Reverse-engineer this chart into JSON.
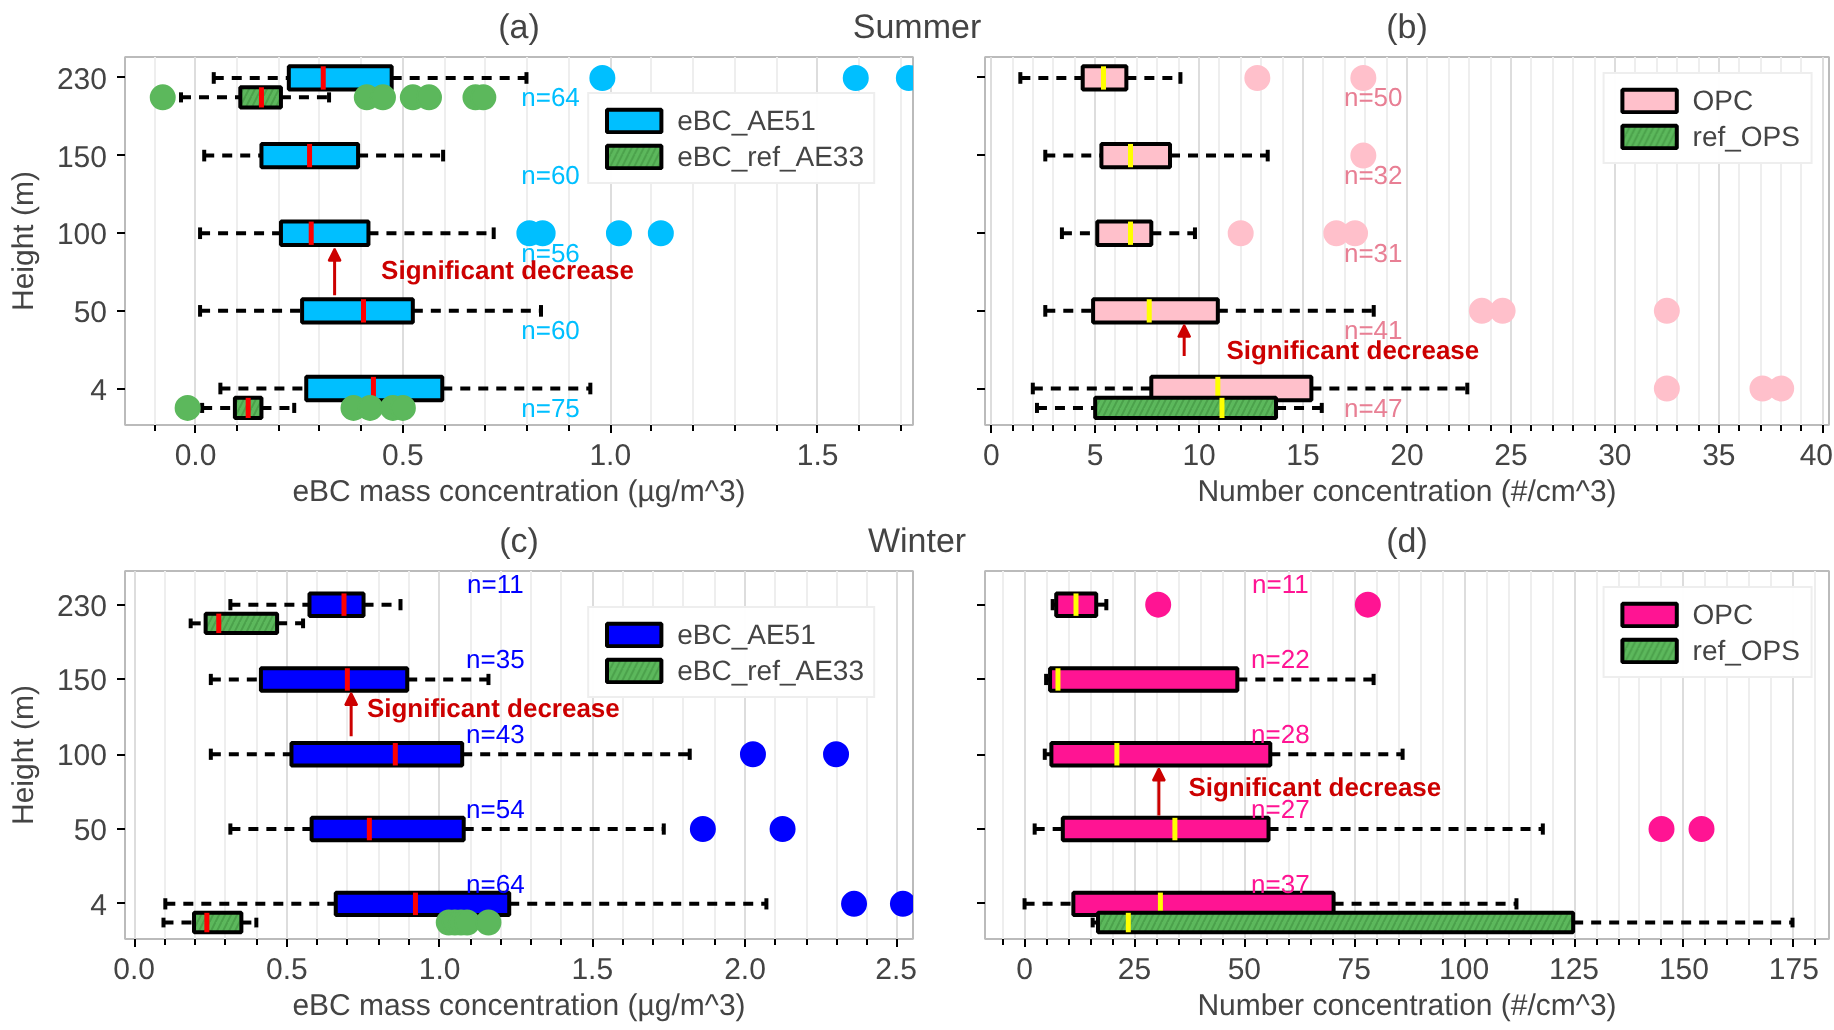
{
  "chart_data": [
    {
      "type": "box",
      "orientation": "horizontal",
      "title": "(a)",
      "subtitle": "Summer",
      "xlabel": "eBC mass concentration (µg/m^3)",
      "ylabel": "Height (m)",
      "categories": [
        "230",
        "150",
        "100",
        "50",
        "4"
      ],
      "xlim": [
        -0.17,
        1.73
      ],
      "xticks": [
        {
          "value": 0,
          "label": "0.0"
        },
        0.5,
        {
          "value": 1,
          "label": "1.0"
        },
        1.5
      ],
      "grid": "x",
      "legend": "top right",
      "series": [
        {
          "name": "eBC_AE51",
          "color": "#00bfff",
          "boxes": [
            {
              "low": 0.044,
              "q1": 0.225,
              "median": 0.308,
              "q3": 0.473,
              "high": 0.798,
              "outliers": [
                0.981,
                1.592,
                1.72
              ]
            },
            {
              "low": 0.021,
              "q1": 0.159,
              "median": 0.275,
              "q3": 0.392,
              "high": 0.597,
              "outliers": [
                1.087
              ]
            },
            {
              "low": 0.011,
              "q1": 0.206,
              "median": 0.279,
              "q3": 0.417,
              "high": 0.719,
              "outliers": [
                0.805,
                0.837,
                1.021,
                1.122
              ]
            },
            {
              "low": 0.011,
              "q1": 0.257,
              "median": 0.405,
              "q3": 0.524,
              "high": 0.833
            },
            {
              "low": 0.06,
              "q1": 0.267,
              "median": 0.429,
              "q3": 0.595,
              "high": 0.952
            }
          ]
        },
        {
          "name": "eBC_ref_AE33",
          "color": "#5cb85c",
          "boxes": [
            {
              "low": -0.035,
              "q1": 0.108,
              "median": 0.159,
              "q3": 0.206,
              "high": 0.322,
              "outliers": [
                -0.079,
                0.413,
                0.452,
                0.524,
                0.563,
                0.675,
                0.694
              ]
            },
            null,
            null,
            null,
            {
              "low": 0.016,
              "q1": 0.095,
              "median": 0.127,
              "q3": 0.159,
              "high": 0.238,
              "outliers": [
                -0.019,
                0.381,
                0.421,
                0.476,
                0.5
              ]
            }
          ]
        }
      ],
      "annotations": [
        "n=64",
        "n=60",
        "n=56",
        "n=60",
        "n=75",
        "Significant decrease"
      ]
    },
    {
      "type": "box",
      "orientation": "horizontal",
      "title": "(b)",
      "xlabel": "Number concentration (#/cm^3)",
      "categories": [
        "230",
        "150",
        "100",
        "50",
        "4"
      ],
      "xlim": [
        -0.3,
        40.3
      ],
      "xticks": [
        0,
        5,
        10,
        15,
        20,
        25,
        30,
        35,
        40
      ],
      "grid": "x",
      "legend": "top right",
      "tick_labels": "x",
      "series": [
        {
          "name": "OPC",
          "color": "#ffc0cb",
          "boxes": [
            {
              "low": 1.4,
              "q1": 4.4,
              "median": 5.4,
              "q3": 6.5,
              "high": 9.1,
              "outliers": [
                12.8,
                17.9
              ]
            },
            {
              "low": 2.6,
              "q1": 5.3,
              "median": 6.7,
              "q3": 8.6,
              "high": 13.3,
              "outliers": [
                17.9
              ]
            },
            {
              "low": 3.4,
              "q1": 5.1,
              "median": 6.7,
              "q3": 7.7,
              "high": 9.8,
              "outliers": [
                12.0,
                16.6,
                17.5
              ]
            },
            {
              "low": 2.6,
              "q1": 4.9,
              "median": 7.6,
              "q3": 10.9,
              "high": 18.4,
              "outliers": [
                23.6,
                24.6,
                32.5
              ]
            },
            {
              "low": 2.0,
              "q1": 7.7,
              "median": 10.9,
              "q3": 15.4,
              "high": 22.9,
              "outliers": [
                32.5,
                37.1,
                38.0
              ]
            }
          ]
        },
        {
          "name": "ref_OPS",
          "color": "#5cb85c",
          "boxes": [
            null,
            null,
            null,
            null,
            {
              "low": 2.2,
              "q1": 5.0,
              "median": 11.1,
              "q3": 13.7,
              "high": 15.9
            }
          ]
        }
      ],
      "annotations": [
        "n=50",
        "n=32",
        "n=31",
        "n=41",
        "n=47",
        "Significant decrease"
      ]
    },
    {
      "type": "box",
      "orientation": "horizontal",
      "title": "(c)",
      "subtitle": "Winter",
      "xlabel": "eBC mass concentration (µg/m^3)",
      "ylabel": "Height (m)",
      "categories": [
        "230",
        "150",
        "100",
        "50",
        "4"
      ],
      "xlim": [
        -0.03,
        2.55
      ],
      "xticks": [
        {
          "value": 0,
          "label": "0.0"
        },
        0.5,
        {
          "value": 1,
          "label": "1.0"
        },
        1.5,
        {
          "value": 2,
          "label": "2.0"
        },
        2.5
      ],
      "grid": "x",
      "legend": "top right",
      "series": [
        {
          "name": "eBC_AE51",
          "color": "#0000ff",
          "boxes": [
            {
              "low": 0.315,
              "q1": 0.574,
              "median": 0.687,
              "q3": 0.751,
              "high": 0.872
            },
            {
              "low": 0.251,
              "q1": 0.415,
              "median": 0.698,
              "q3": 0.894,
              "high": 1.16
            },
            {
              "low": 0.251,
              "q1": 0.515,
              "median": 0.855,
              "q3": 1.074,
              "high": 1.819,
              "outliers": [
                2.026,
                2.298
              ]
            },
            {
              "low": 0.315,
              "q1": 0.581,
              "median": 0.77,
              "q3": 1.079,
              "high": 1.734,
              "outliers": [
                1.862,
                2.123
              ]
            },
            {
              "low": 0.102,
              "q1": 0.66,
              "median": 0.921,
              "q3": 1.228,
              "high": 2.07,
              "outliers": [
                2.357,
                2.517
              ]
            }
          ]
        },
        {
          "name": "eBC_ref_AE33",
          "color": "#5cb85c",
          "boxes": [
            {
              "low": 0.185,
              "q1": 0.234,
              "median": 0.277,
              "q3": 0.468,
              "high": 0.553
            },
            null,
            null,
            null,
            {
              "low": 0.096,
              "q1": 0.196,
              "median": 0.238,
              "q3": 0.351,
              "high": 0.4,
              "outliers": [
                1.03,
                1.05,
                1.07,
                1.09,
                1.16
              ]
            }
          ]
        }
      ],
      "annotations": [
        "n=11",
        "n=35",
        "n=43",
        "n=54",
        "n=64",
        "Significant decrease"
      ]
    },
    {
      "type": "box",
      "orientation": "horizontal",
      "title": "(d)",
      "xlabel": "Number concentration (#/cm^3)",
      "categories": [
        "230",
        "150",
        "100",
        "50",
        "4"
      ],
      "xlim": [
        -9,
        183
      ],
      "xticks": [
        0,
        25,
        50,
        75,
        100,
        125,
        150,
        175
      ],
      "grid": "x",
      "legend": "top right",
      "tick_labels": "x",
      "series": [
        {
          "name": "OPC",
          "color": "#ff1493",
          "boxes": [
            {
              "low": 6.4,
              "q1": 7.2,
              "median": 11.7,
              "q3": 16.3,
              "high": 18.6,
              "outliers": [
                30.4,
                78.1
              ]
            },
            {
              "low": 4.9,
              "q1": 5.8,
              "median": 7.6,
              "q3": 48.4,
              "high": 79.4
            },
            {
              "low": 4.6,
              "q1": 6.1,
              "median": 21.0,
              "q3": 55.9,
              "high": 86.0
            },
            {
              "low": 2.3,
              "q1": 8.7,
              "median": 34.2,
              "q3": 55.5,
              "high": 117.9,
              "outliers": [
                144.9,
                154.0
              ]
            },
            {
              "low": 0,
              "q1": 11.1,
              "median": 30.9,
              "q3": 70.3,
              "high": 111.9
            }
          ]
        },
        {
          "name": "ref_OPS",
          "color": "#5cb85c",
          "boxes": [
            null,
            null,
            null,
            null,
            {
              "low": 15.5,
              "q1": 16.7,
              "median": 23.6,
              "q3": 124.8,
              "high": 174.7
            }
          ]
        }
      ],
      "annotations": [
        "n=11",
        "n=22",
        "n=28",
        "n=27",
        "n=37",
        "Significant decrease"
      ]
    }
  ]
}
